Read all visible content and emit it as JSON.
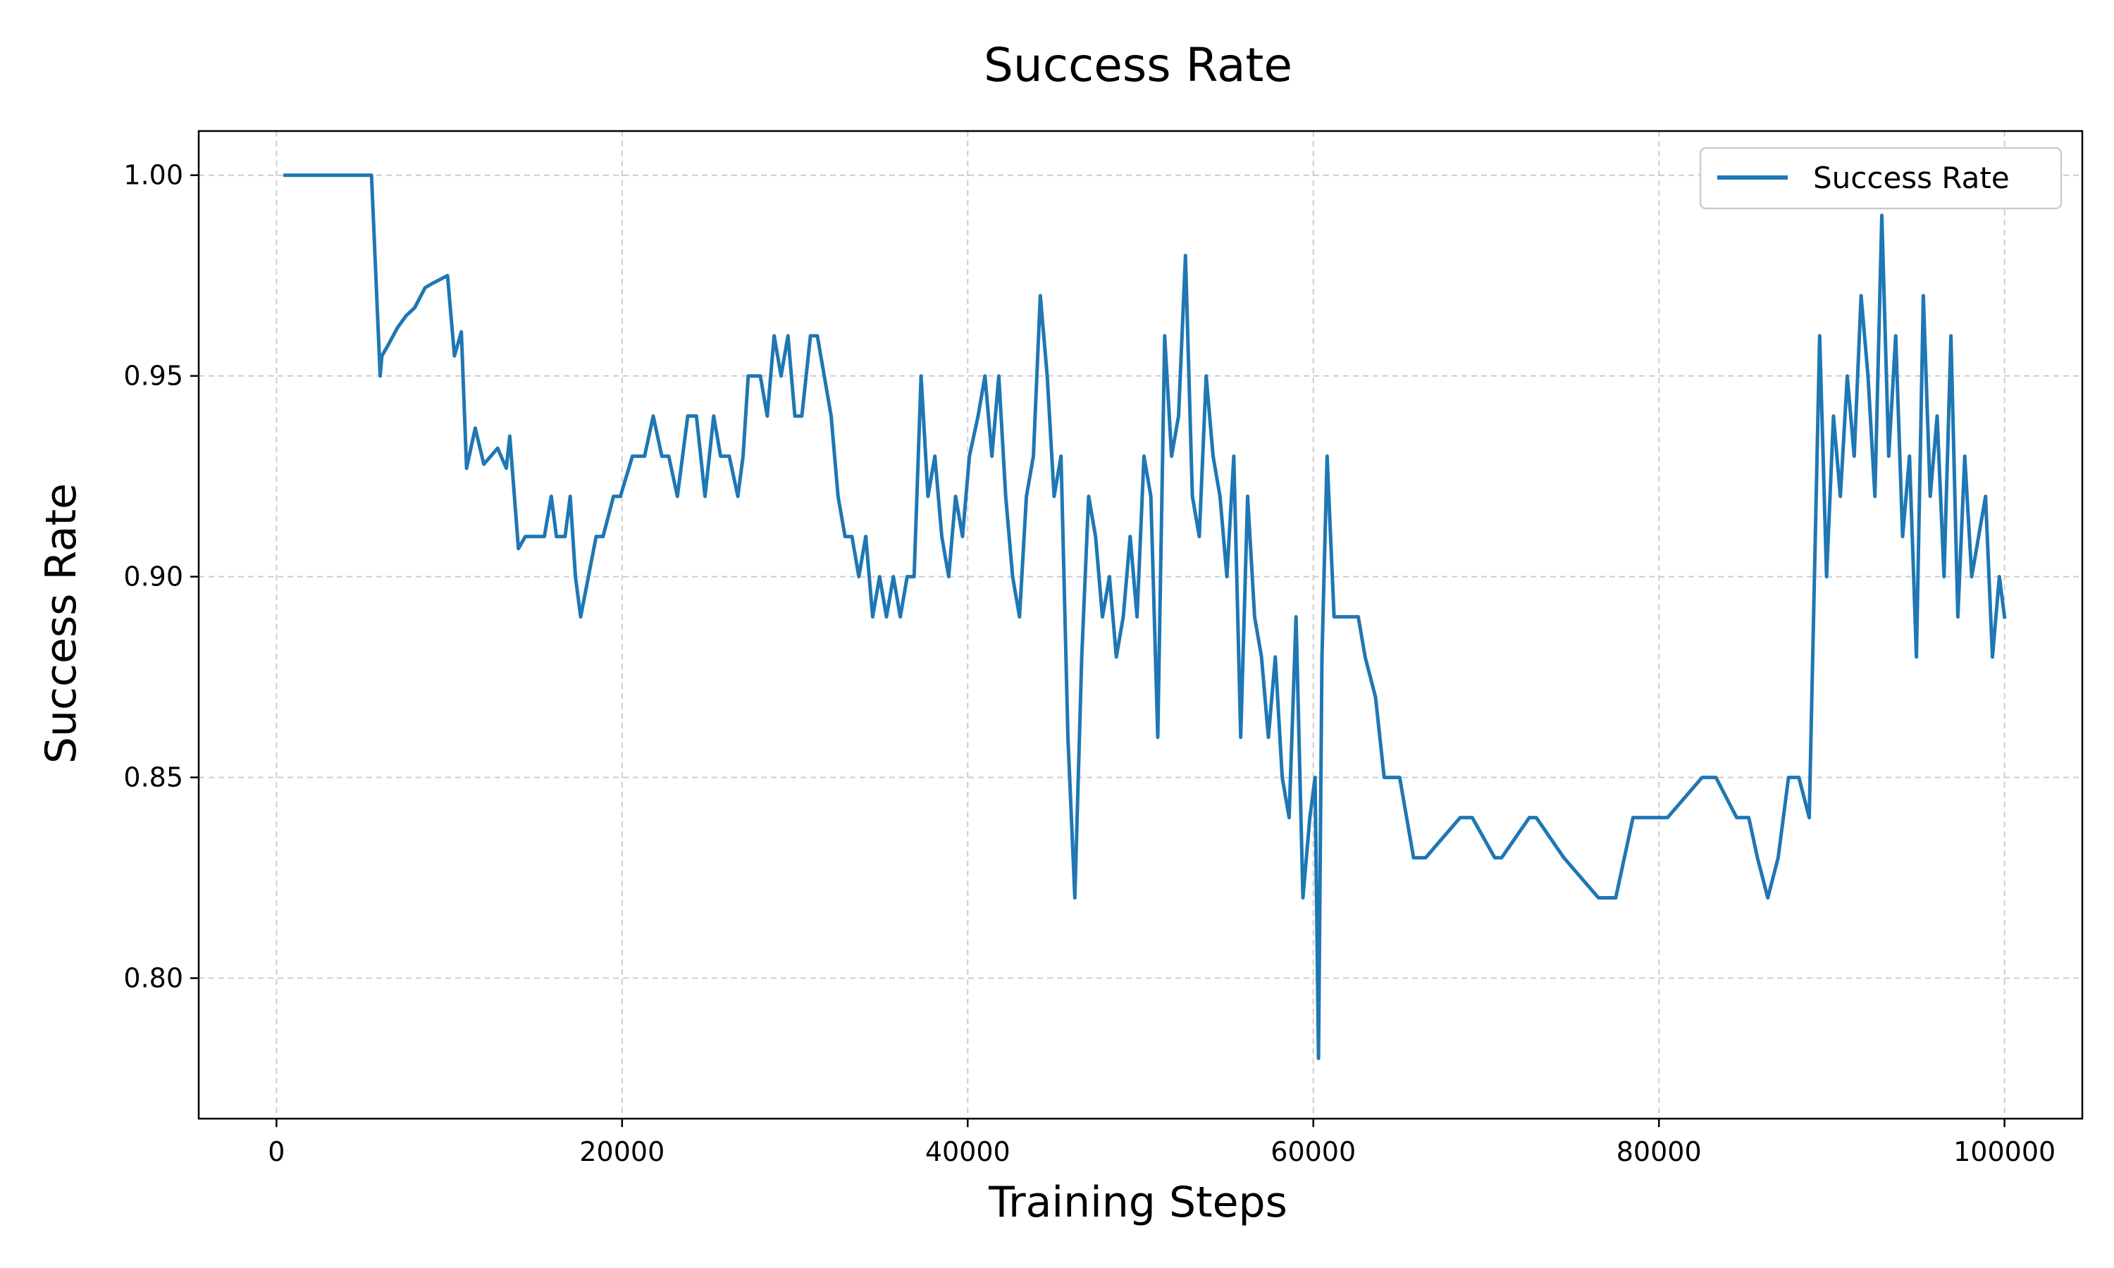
{
  "chart_data": {
    "type": "line",
    "title": "Success Rate",
    "xlabel": "Training Steps",
    "ylabel": "Success Rate",
    "xlim": [
      -4500,
      104500
    ],
    "ylim": [
      0.765,
      1.011
    ],
    "xticks": [
      0,
      20000,
      40000,
      60000,
      80000,
      100000
    ],
    "yticks": [
      0.8,
      0.85,
      0.9,
      0.95,
      1.0
    ],
    "ytick_labels": [
      "0.80",
      "0.85",
      "0.90",
      "0.95",
      "1.00"
    ],
    "grid": true,
    "legend_position": "top-right",
    "colors": {
      "line": "#1f77b4",
      "grid": "#cccccc",
      "axes": "#000000"
    },
    "series": [
      {
        "name": "Success Rate",
        "x": [
          500,
          5500,
          6000,
          6100,
          6500,
          7000,
          7500,
          8000,
          8600,
          9000,
          9900,
          10300,
          10700,
          11000,
          11500,
          12000,
          12400,
          12800,
          13300,
          13500,
          14000,
          14400,
          14800,
          15200,
          15500,
          15900,
          16200,
          16700,
          17000,
          17300,
          17600,
          18500,
          18900,
          19500,
          19900,
          20600,
          21000,
          21300,
          21800,
          22300,
          22700,
          23200,
          23800,
          24300,
          24800,
          25300,
          25700,
          26200,
          26700,
          27000,
          27300,
          28000,
          28400,
          28800,
          29200,
          29600,
          30000,
          30400,
          30900,
          31300,
          31700,
          32100,
          32500,
          32900,
          33300,
          33700,
          34100,
          34500,
          34900,
          35300,
          35700,
          36100,
          36500,
          36900,
          37300,
          37700,
          38100,
          38500,
          38900,
          39300,
          39700,
          40100,
          40600,
          41000,
          41400,
          41800,
          42200,
          42600,
          43000,
          43400,
          43800,
          44200,
          44600,
          45000,
          45400,
          45800,
          46200,
          46600,
          47000,
          47400,
          47800,
          48200,
          48600,
          49000,
          49400,
          49800,
          50200,
          50600,
          51000,
          51400,
          51800,
          52200,
          52600,
          53000,
          53400,
          53800,
          54200,
          54600,
          55000,
          55400,
          55800,
          56200,
          56600,
          57000,
          57400,
          57800,
          58200,
          58600,
          59000,
          59400,
          59800,
          60100,
          60300,
          60500,
          60800,
          61200,
          61800,
          62600,
          63000,
          63600,
          64100,
          65000,
          65800,
          66500,
          68500,
          69200,
          70500,
          70900,
          72500,
          72900,
          74500,
          76500,
          77200,
          77500,
          78500,
          79500,
          80500,
          82500,
          83300,
          84500,
          85200,
          85700,
          86300,
          86900,
          87500,
          88100,
          88700,
          89300,
          89700,
          90100,
          90500,
          90900,
          91300,
          91700,
          92100,
          92500,
          92900,
          93300,
          93700,
          94100,
          94500,
          94900,
          95300,
          95700,
          96100,
          96500,
          96900,
          97300,
          97700,
          98100,
          98500,
          98900,
          99300,
          99700,
          100000
        ],
        "y": [
          1.0,
          1.0,
          0.95,
          0.955,
          0.958,
          0.962,
          0.965,
          0.967,
          0.972,
          0.973,
          0.975,
          0.955,
          0.961,
          0.927,
          0.937,
          0.928,
          0.93,
          0.932,
          0.927,
          0.935,
          0.907,
          0.91,
          0.91,
          0.91,
          0.91,
          0.92,
          0.91,
          0.91,
          0.92,
          0.9,
          0.89,
          0.91,
          0.91,
          0.92,
          0.92,
          0.93,
          0.93,
          0.93,
          0.94,
          0.93,
          0.93,
          0.92,
          0.94,
          0.94,
          0.92,
          0.94,
          0.93,
          0.93,
          0.92,
          0.93,
          0.95,
          0.95,
          0.94,
          0.96,
          0.95,
          0.96,
          0.94,
          0.94,
          0.96,
          0.96,
          0.95,
          0.94,
          0.92,
          0.91,
          0.91,
          0.9,
          0.91,
          0.89,
          0.9,
          0.89,
          0.9,
          0.89,
          0.9,
          0.9,
          0.95,
          0.92,
          0.93,
          0.91,
          0.9,
          0.92,
          0.91,
          0.93,
          0.94,
          0.95,
          0.93,
          0.95,
          0.92,
          0.9,
          0.89,
          0.92,
          0.93,
          0.97,
          0.95,
          0.92,
          0.93,
          0.86,
          0.82,
          0.88,
          0.92,
          0.91,
          0.89,
          0.9,
          0.88,
          0.89,
          0.91,
          0.89,
          0.93,
          0.92,
          0.86,
          0.96,
          0.93,
          0.94,
          0.98,
          0.92,
          0.91,
          0.95,
          0.93,
          0.92,
          0.9,
          0.93,
          0.86,
          0.92,
          0.89,
          0.88,
          0.86,
          0.88,
          0.85,
          0.84,
          0.89,
          0.82,
          0.84,
          0.85,
          0.78,
          0.88,
          0.93,
          0.89,
          0.89,
          0.89,
          0.88,
          0.87,
          0.85,
          0.85,
          0.83,
          0.83,
          0.84,
          0.84,
          0.83,
          0.83,
          0.84,
          0.84,
          0.83,
          0.82,
          0.82,
          0.82,
          0.84,
          0.84,
          0.84,
          0.85,
          0.85,
          0.84,
          0.84,
          0.83,
          0.82,
          0.83,
          0.85,
          0.85,
          0.84,
          0.96,
          0.9,
          0.94,
          0.92,
          0.95,
          0.93,
          0.97,
          0.95,
          0.92,
          0.99,
          0.93,
          0.96,
          0.91,
          0.93,
          0.88,
          0.97,
          0.92,
          0.94,
          0.9,
          0.96,
          0.89,
          0.93,
          0.9,
          0.91,
          0.92,
          0.88,
          0.9,
          0.89
        ]
      }
    ]
  }
}
